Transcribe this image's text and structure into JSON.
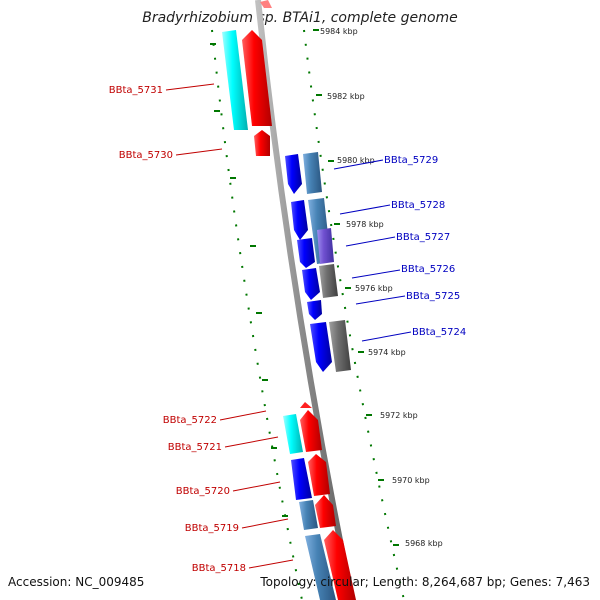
{
  "title": "Bradyrhizobium sp. BTAi1, complete genome",
  "accession": "Accession: NC_009485",
  "topology": "Topology: circular; Length: 8,264,687 bp; Genes: 7,463",
  "ticks": [
    "5984 kbp",
    "5982 kbp",
    "5980 kbp",
    "5978 kbp",
    "5976 kbp",
    "5974 kbp",
    "5972 kbp",
    "5970 kbp",
    "5968 kbp"
  ],
  "genes_left": [
    "BBta_5731",
    "BBta_5730",
    "BBta_5722",
    "BBta_5721",
    "BBta_5720",
    "BBta_5719",
    "BBta_5718"
  ],
  "genes_right": [
    "BBta_5729",
    "BBta_5728",
    "BBta_5727",
    "BBta_5726",
    "BBta_5725",
    "BBta_5724"
  ],
  "colors": {
    "forward_gene": "#ff0000",
    "reverse_gene": "#0000ff",
    "cyan_box": "#00ffff",
    "steel_box": "#4682b4",
    "gray_box": "#707070",
    "purple_box": "#7050d0",
    "backbone": "#888888",
    "tick_green": "#007700",
    "label_red": "#c00000",
    "label_blue": "#0000c0"
  }
}
